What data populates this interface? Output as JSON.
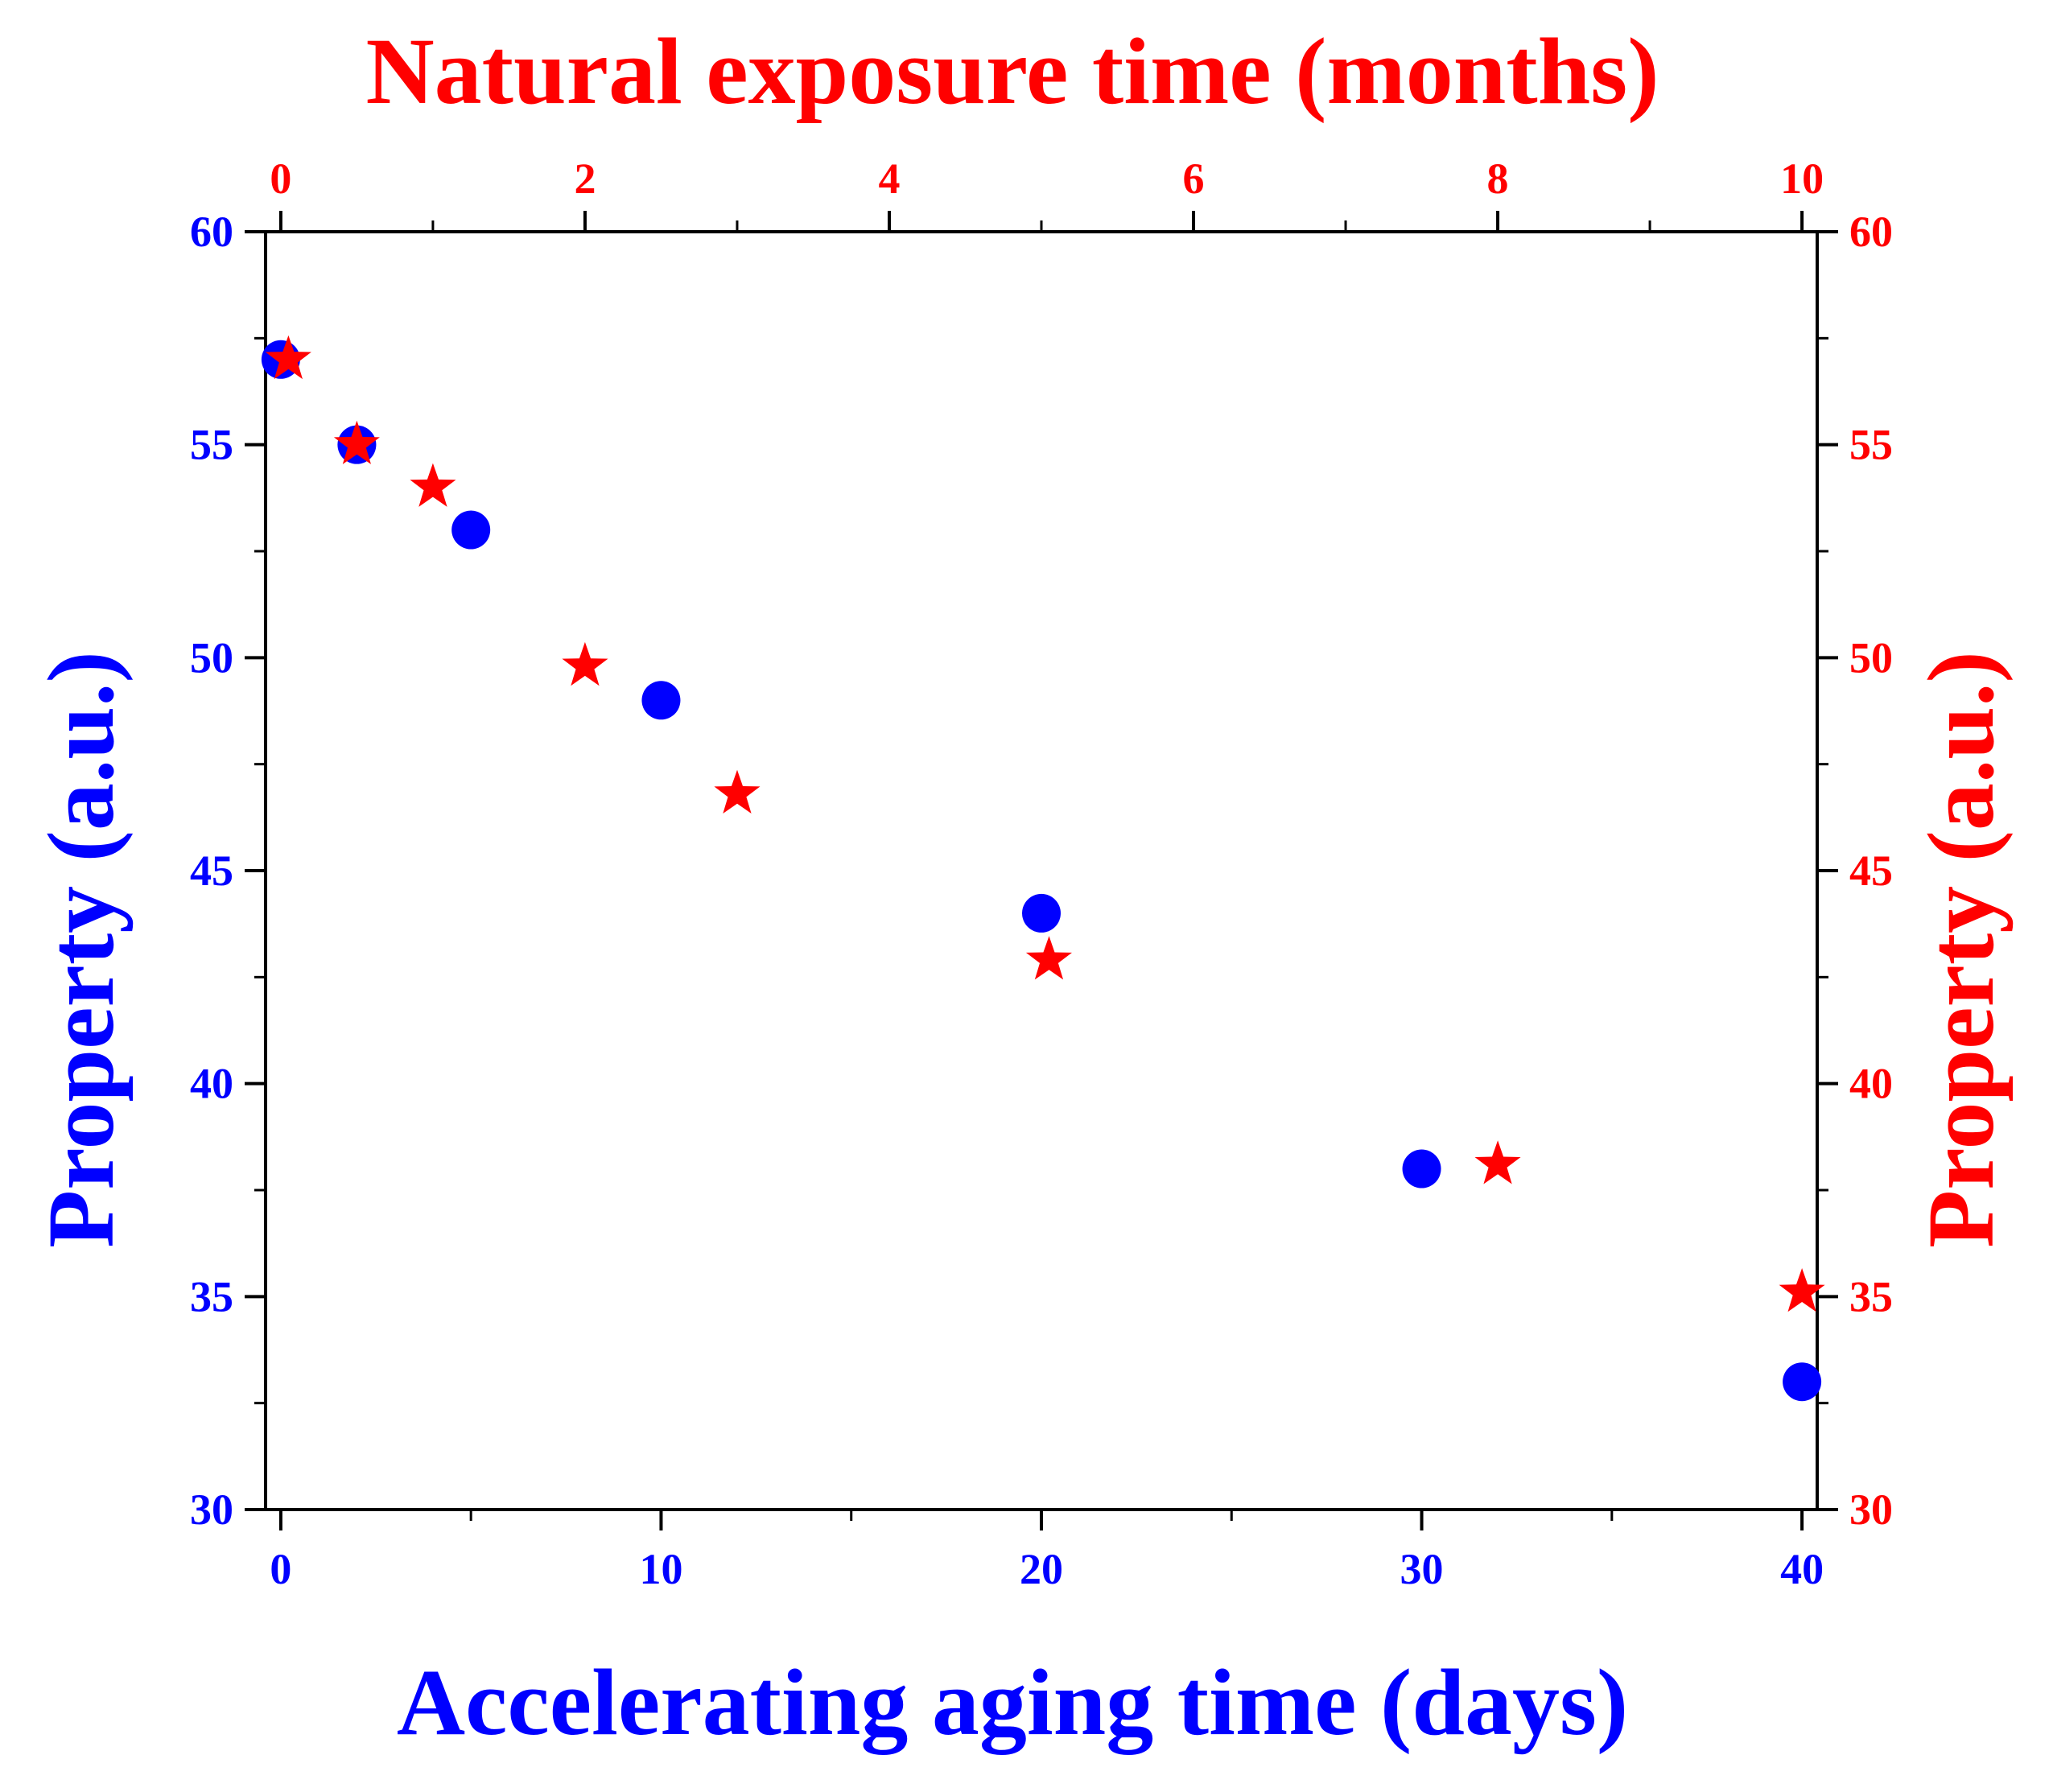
{
  "chart_data": {
    "type": "scatter",
    "title": "",
    "colors": {
      "accelerated": "#0000ff",
      "natural": "#ff0000",
      "frame": "#000000"
    },
    "x_bottom": {
      "label": "Accelerating aging time (days)",
      "range": [
        -0.4,
        40.4
      ],
      "ticks": [
        0,
        10,
        20,
        30,
        40
      ],
      "tick_labels": [
        "0",
        "10",
        "20",
        "30",
        "40"
      ],
      "minor_step": 5
    },
    "x_top": {
      "label": "Natural exposure time (months)",
      "range": [
        -0.1,
        10.1
      ],
      "ticks": [
        0,
        2,
        4,
        6,
        8,
        10
      ],
      "tick_labels": [
        "0",
        "2",
        "4",
        "6",
        "8",
        "10"
      ],
      "minor_step": 1
    },
    "y_left": {
      "label": "Property (a.u.)",
      "range": [
        30,
        60
      ],
      "ticks": [
        30,
        35,
        40,
        45,
        50,
        55,
        60
      ],
      "tick_labels": [
        "30",
        "35",
        "40",
        "45",
        "50",
        "55",
        "60"
      ],
      "minor_step": 2.5
    },
    "y_right": {
      "label": "Property (a.u.)",
      "range": [
        30,
        60
      ],
      "ticks": [
        30,
        35,
        40,
        45,
        50,
        55,
        60
      ],
      "tick_labels": [
        "30",
        "35",
        "40",
        "45",
        "50",
        "55",
        "60"
      ],
      "minor_step": 2.5
    },
    "legend": "none",
    "grid": false,
    "series": [
      {
        "name": "Accelerating aging",
        "axis": "bottom-left",
        "marker": "circle",
        "x": [
          0,
          2,
          5,
          10,
          20,
          30,
          40
        ],
        "y": [
          57,
          55,
          53,
          49,
          44,
          38,
          33
        ]
      },
      {
        "name": "Natural exposure",
        "axis": "top-right",
        "marker": "star",
        "x": [
          0.05,
          0.5,
          1.0,
          2.0,
          3.0,
          5.05,
          8.0,
          10.0
        ],
        "y": [
          57,
          55,
          54,
          49.8,
          46.8,
          42.9,
          38.1,
          35.1
        ]
      }
    ]
  }
}
